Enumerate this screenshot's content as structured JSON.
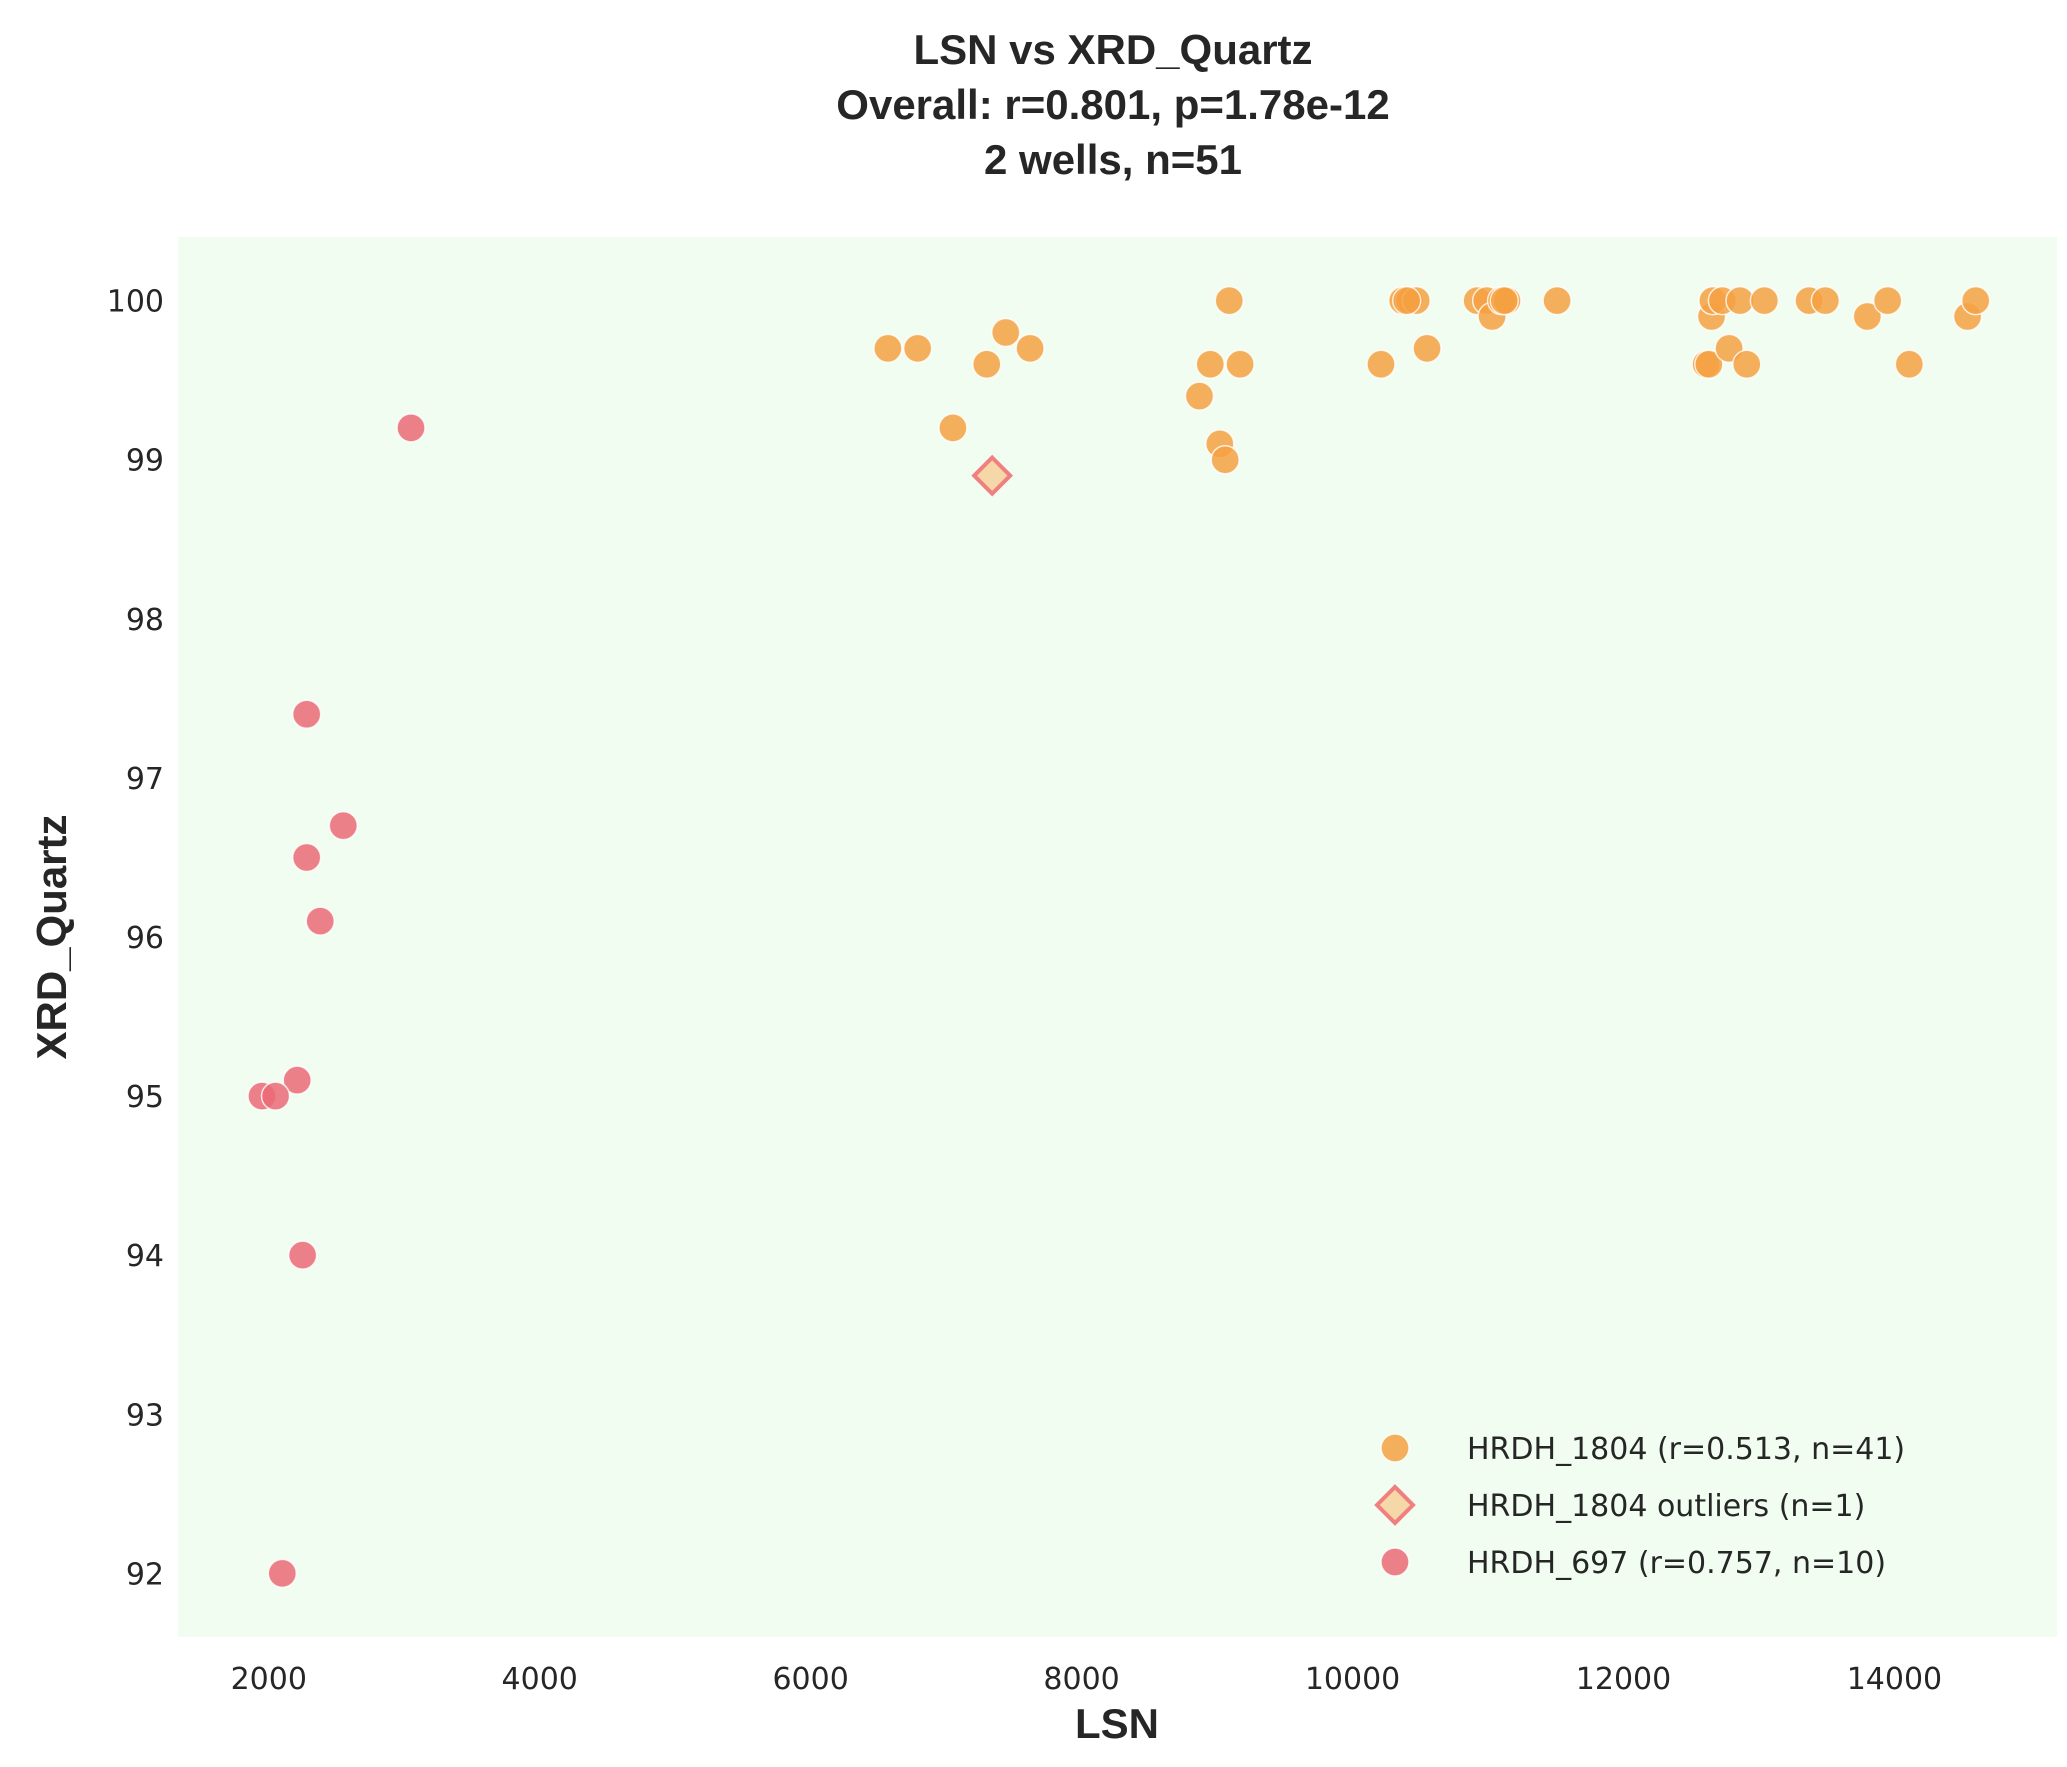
{
  "chart_data": {
    "type": "scatter",
    "title_lines": [
      "LSN vs XRD_Quartz",
      "Overall: r=0.801, p=1.78e-12",
      "2 wells, n=51"
    ],
    "xlabel": "LSN",
    "ylabel": "XRD_Quartz",
    "xlim": [
      1330,
      15200
    ],
    "ylim": [
      91.6,
      100.4
    ],
    "xticks": [
      2000,
      4000,
      6000,
      8000,
      10000,
      12000,
      14000
    ],
    "yticks": [
      92,
      93,
      94,
      95,
      96,
      97,
      98,
      99,
      100
    ],
    "grid": false,
    "background": "#f0fdf0",
    "legend_placement": "lower-right",
    "series": [
      {
        "name": "HRDH_1804 (r=0.513, n=41)",
        "marker": "circle",
        "color": "#f5a142",
        "points": [
          [
            6570,
            99.7
          ],
          [
            6790,
            99.7
          ],
          [
            7050,
            99.2
          ],
          [
            7300,
            99.6
          ],
          [
            7440,
            99.8
          ],
          [
            7620,
            99.7
          ],
          [
            8870,
            99.4
          ],
          [
            8950,
            99.6
          ],
          [
            9020,
            99.1
          ],
          [
            9060,
            99.0
          ],
          [
            9090,
            100.0
          ],
          [
            9170,
            99.6
          ],
          [
            10210,
            99.6
          ],
          [
            10370,
            100.0
          ],
          [
            10420,
            100.0
          ],
          [
            10470,
            100.0
          ],
          [
            10550,
            99.7
          ],
          [
            10920,
            100.0
          ],
          [
            10990,
            100.0
          ],
          [
            11030,
            99.9
          ],
          [
            11100,
            100.0
          ],
          [
            11140,
            100.0
          ],
          [
            11510,
            100.0
          ],
          [
            12610,
            99.6
          ],
          [
            12630,
            99.6
          ],
          [
            12650,
            99.9
          ],
          [
            12660,
            100.0
          ],
          [
            12730,
            100.0
          ],
          [
            12780,
            99.7
          ],
          [
            12860,
            100.0
          ],
          [
            12910,
            99.6
          ],
          [
            13040,
            100.0
          ],
          [
            13370,
            100.0
          ],
          [
            13490,
            100.0
          ],
          [
            13800,
            99.9
          ],
          [
            13950,
            100.0
          ],
          [
            14110,
            99.6
          ],
          [
            14540,
            99.9
          ],
          [
            14600,
            100.0
          ],
          [
            10400,
            100.0
          ],
          [
            11120,
            100.0
          ]
        ]
      },
      {
        "name": "HRDH_1804 outliers (n=1)",
        "marker": "diamond",
        "color": "#f5d3a0",
        "edge_color": "#f08080",
        "points": [
          [
            7340,
            98.9
          ]
        ]
      },
      {
        "name": "HRDH_697 (r=0.757, n=10)",
        "marker": "circle",
        "color": "#ea6a77",
        "points": [
          [
            3050,
            99.2
          ],
          [
            2280,
            97.4
          ],
          [
            2550,
            96.7
          ],
          [
            2280,
            96.5
          ],
          [
            2380,
            96.1
          ],
          [
            2210,
            95.1
          ],
          [
            1950,
            95.0
          ],
          [
            2050,
            95.0
          ],
          [
            2250,
            94.0
          ],
          [
            2100,
            92.0
          ]
        ]
      }
    ]
  }
}
